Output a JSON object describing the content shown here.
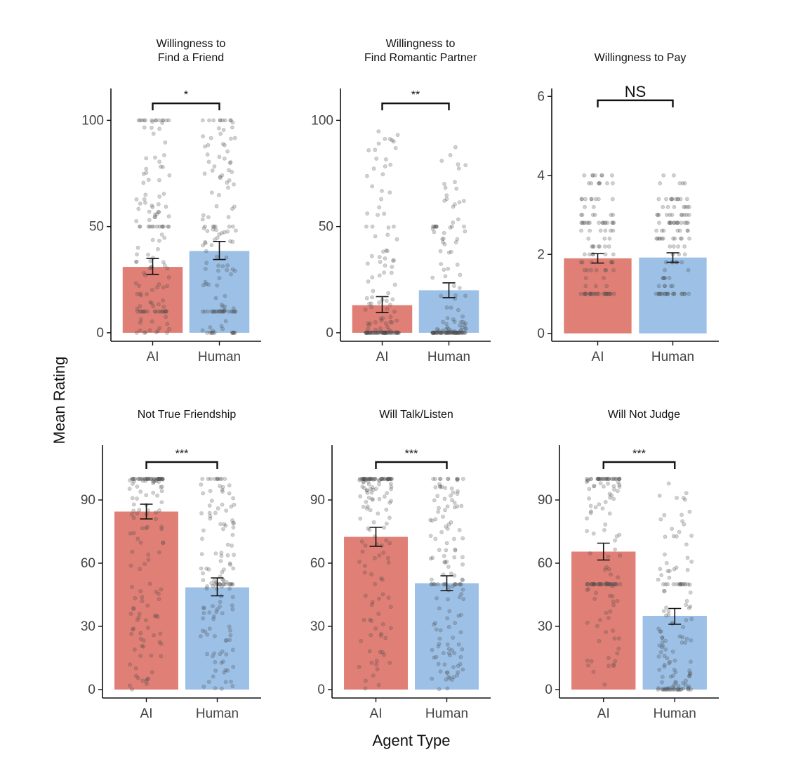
{
  "figure": {
    "ylabel": "Mean Rating",
    "xlabel": "Agent Type"
  },
  "colors": {
    "ai": "#e07f75",
    "human": "#9cc0e6",
    "points": "#555555",
    "axis": "#111111"
  },
  "chart_data": [
    {
      "type": "bar",
      "title": "Willingness to\nFind a Friend",
      "categories": [
        "AI",
        "Human"
      ],
      "values": [
        31,
        38.5
      ],
      "error": [
        [
          27.5,
          35
        ],
        [
          34.5,
          43
        ]
      ],
      "ylim": [
        -4,
        115
      ],
      "yticks": [
        0,
        50,
        100
      ],
      "significance": "*",
      "bracket_y": 108,
      "point_pattern": "uniform",
      "point_max": 100
    },
    {
      "type": "bar",
      "title": "Willingness to\nFind Romantic Partner",
      "categories": [
        "AI",
        "Human"
      ],
      "values": [
        13,
        20
      ],
      "error": [
        [
          9.5,
          17
        ],
        [
          16.5,
          23.5
        ]
      ],
      "ylim": [
        -4,
        115
      ],
      "yticks": [
        0,
        50,
        100
      ],
      "significance": "**",
      "bracket_y": 108,
      "point_pattern": "lowskew",
      "point_max": 100
    },
    {
      "type": "bar",
      "title": "Willingness to Pay",
      "categories": [
        "AI",
        "Human"
      ],
      "values": [
        1.9,
        1.92
      ],
      "error": [
        [
          1.78,
          2.02
        ],
        [
          1.8,
          2.04
        ]
      ],
      "ylim": [
        -0.2,
        6.2
      ],
      "yticks": [
        0,
        2,
        4,
        6
      ],
      "significance": "NS",
      "bracket_y": 5.9,
      "point_pattern": "discrete",
      "point_max": 4
    },
    {
      "type": "bar",
      "title": "Not True Friendship",
      "categories": [
        "AI",
        "Human"
      ],
      "values": [
        84.5,
        48.5
      ],
      "error": [
        [
          81,
          88
        ],
        [
          44.5,
          53
        ]
      ],
      "ylim": [
        -4,
        116
      ],
      "yticks": [
        0,
        30,
        60,
        90
      ],
      "significance": "***",
      "bracket_y": 108,
      "point_pattern": "highskew",
      "point_max": 100
    },
    {
      "type": "bar",
      "title": "Will Talk/Listen",
      "categories": [
        "AI",
        "Human"
      ],
      "values": [
        72.5,
        50.5
      ],
      "error": [
        [
          68,
          77
        ],
        [
          47,
          54
        ]
      ],
      "ylim": [
        -4,
        116
      ],
      "yticks": [
        0,
        30,
        60,
        90
      ],
      "significance": "***",
      "bracket_y": 108,
      "point_pattern": "highskew",
      "point_max": 100
    },
    {
      "type": "bar",
      "title": "Will Not Judge",
      "categories": [
        "AI",
        "Human"
      ],
      "values": [
        65.5,
        35
      ],
      "error": [
        [
          61.5,
          69.5
        ],
        [
          31,
          38.5
        ]
      ],
      "ylim": [
        -4,
        116
      ],
      "yticks": [
        0,
        30,
        60,
        90
      ],
      "significance": "***",
      "bracket_y": 108,
      "point_pattern": "mixed",
      "point_max": 100
    }
  ]
}
